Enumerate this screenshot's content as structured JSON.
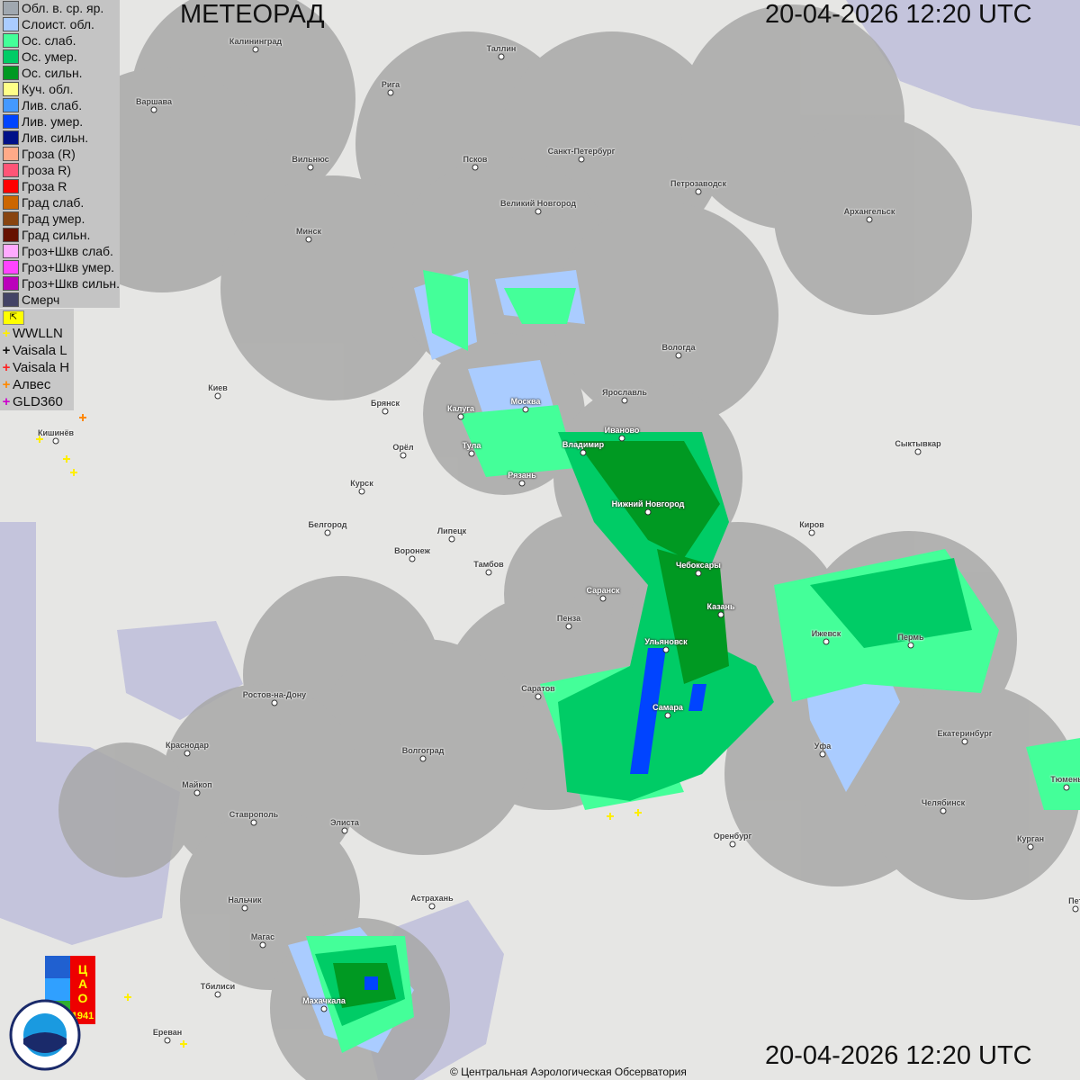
{
  "header": {
    "title": "МЕТЕОРАД",
    "timestamp": "20-04-2026  12:20 UTC"
  },
  "legend": [
    {
      "label": "Обл. в. ср. яр.",
      "color": "#a0a8b0"
    },
    {
      "label": "Слоист. обл.",
      "color": "#aaccff"
    },
    {
      "label": "Ос. слаб.",
      "color": "#44ff99"
    },
    {
      "label": "Ос. умер.",
      "color": "#00cc66"
    },
    {
      "label": "Ос. сильн.",
      "color": "#009922"
    },
    {
      "label": "Куч. обл.",
      "color": "#ffff88"
    },
    {
      "label": "Лив. слаб.",
      "color": "#4499ff"
    },
    {
      "label": "Лив. умер.",
      "color": "#0044ff"
    },
    {
      "label": "Лив. сильн.",
      "color": "#001188"
    },
    {
      "label": "Гроза (R)",
      "color": "#ffaa88"
    },
    {
      "label": "Гроза R)",
      "color": "#ff5577"
    },
    {
      "label": "Гроза R",
      "color": "#ff0000"
    },
    {
      "label": "Град слаб.",
      "color": "#cc6600"
    },
    {
      "label": "Град умер.",
      "color": "#884411"
    },
    {
      "label": "Град сильн.",
      "color": "#661100"
    },
    {
      "label": "Гроз+Шкв слаб.",
      "color": "#ffaaff"
    },
    {
      "label": "Гроз+Шкв умер.",
      "color": "#ff44ff"
    },
    {
      "label": "Гроз+Шкв сильн.",
      "color": "#bb00bb"
    },
    {
      "label": "Смерч",
      "color": "#444466"
    }
  ],
  "lightning": [
    {
      "label": "WWLLN",
      "color": "#ffee00"
    },
    {
      "label": "Vaisala L",
      "color": "#111111"
    },
    {
      "label": "Vaisala H",
      "color": "#ff2222"
    },
    {
      "label": "Алвес",
      "color": "#ff8800"
    },
    {
      "label": "GLD360",
      "color": "#cc00cc"
    }
  ],
  "cities": [
    "Калининград",
    "Таллин",
    "Рига",
    "Варшава",
    "Санкт-Петербург",
    "Псков",
    "Вильнюс",
    "Петрозаводск",
    "Великий Новгород",
    "Архангельск",
    "Минск",
    "Вологда",
    "Киев",
    "Ярославль",
    "Москва",
    "Брянск",
    "Калуга",
    "Иваново",
    "Кишинёв",
    "Владимир",
    "Тула",
    "Орёл",
    "Сыктывкар",
    "Рязань",
    "Курск",
    "Нижний Новгород",
    "Белгород",
    "Киров",
    "Липецк",
    "Воронеж",
    "Тамбов",
    "Чебоксары",
    "Саранск",
    "Казань",
    "Пенза",
    "Ижевск",
    "Пермь",
    "Ульяновск",
    "Саратов",
    "Ростов-на-Дону",
    "Самара",
    "Екатеринбург",
    "Уфа",
    "Краснодар",
    "Волгоград",
    "Майкоп",
    "Тюмень",
    "Челябинск",
    "Ставрополь",
    "Элиста",
    "Оренбург",
    "Курган",
    "Астрахань",
    "Нальчик",
    "Пет",
    "Магас",
    "Махачкала",
    "Тбилиси",
    "Ереван"
  ],
  "logos": {
    "cao": "ЦАО 1941",
    "roshydromet": "РОСГИДРОМЕТ ROSHYDROMET"
  },
  "copyright": "© Центральная Аэрологическая Обсерватория"
}
